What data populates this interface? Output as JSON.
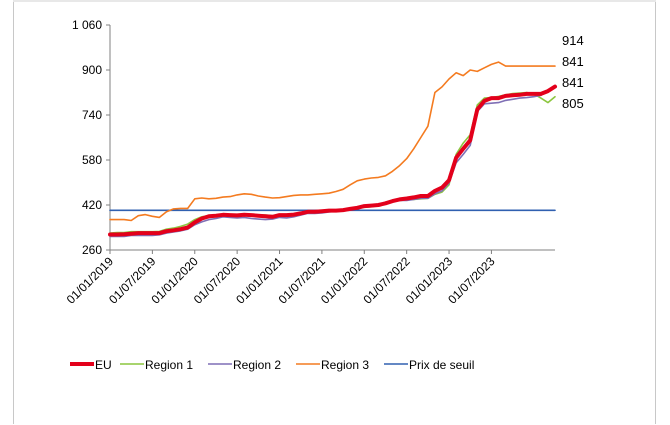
{
  "chart_data": {
    "type": "line",
    "title": "",
    "xlabel": "",
    "ylabel": "",
    "ylim": [
      260,
      1060
    ],
    "y_ticks": [
      {
        "value": 260,
        "label": "260"
      },
      {
        "value": 420,
        "label": "420"
      },
      {
        "value": 580,
        "label": "580"
      },
      {
        "value": 740,
        "label": "740"
      },
      {
        "value": 900,
        "label": "900"
      },
      {
        "value": 1060,
        "label": "1 060"
      }
    ],
    "x_ticks": [
      "01/01/2019",
      "01/07/2019",
      "01/01/2020",
      "01/07/2020",
      "01/01/2021",
      "01/07/2021",
      "01/01/2022",
      "01/07/2022",
      "01/01/2023",
      "01/07/2023"
    ],
    "x_start": "01/01/2019",
    "x_step": "monthly",
    "grid": false,
    "legend_position": "bottom",
    "series": [
      {
        "name": "EU",
        "color": "#e3001b",
        "values": [
          315,
          315,
          316,
          318,
          320,
          320,
          320,
          320,
          327,
          330,
          334,
          340,
          358,
          372,
          380,
          382,
          385,
          384,
          383,
          385,
          384,
          382,
          380,
          378,
          384,
          384,
          386,
          390,
          396,
          396,
          398,
          400,
          400,
          402,
          406,
          410,
          416,
          418,
          420,
          426,
          434,
          440,
          443,
          447,
          452,
          452,
          470,
          482,
          508,
          588,
          620,
          650,
          760,
          790,
          800,
          800,
          808,
          810,
          812,
          815,
          815,
          815,
          825,
          841
        ]
      },
      {
        "name": "Region 1",
        "color": "#8cc63f",
        "values": [
          320,
          322,
          322,
          325,
          325,
          325,
          325,
          326,
          334,
          338,
          344,
          352,
          368,
          378,
          382,
          384,
          386,
          384,
          384,
          386,
          385,
          384,
          384,
          382,
          386,
          386,
          388,
          392,
          396,
          396,
          397,
          398,
          400,
          402,
          406,
          410,
          412,
          414,
          418,
          424,
          432,
          436,
          438,
          440,
          442,
          444,
          458,
          466,
          492,
          600,
          640,
          670,
          776,
          800,
          802,
          806,
          812,
          816,
          818,
          820,
          815,
          800,
          784,
          805
        ]
      },
      {
        "name": "Region 2",
        "color": "#7f6fb5",
        "values": [
          308,
          308,
          308,
          312,
          312,
          312,
          312,
          314,
          320,
          324,
          328,
          334,
          350,
          360,
          368,
          372,
          378,
          376,
          374,
          376,
          372,
          370,
          368,
          370,
          376,
          374,
          378,
          384,
          390,
          390,
          392,
          395,
          398,
          400,
          404,
          410,
          416,
          418,
          422,
          428,
          432,
          436,
          436,
          440,
          444,
          444,
          460,
          470,
          498,
          570,
          600,
          632,
          752,
          780,
          782,
          784,
          792,
          796,
          800,
          802,
          805,
          810,
          828,
          841
        ]
      },
      {
        "name": "Region 3",
        "color": "#f47b20",
        "values": [
          368,
          368,
          368,
          365,
          382,
          386,
          380,
          376,
          396,
          406,
          408,
          408,
          442,
          445,
          442,
          444,
          448,
          450,
          456,
          460,
          458,
          452,
          448,
          445,
          446,
          450,
          454,
          456,
          456,
          458,
          460,
          462,
          468,
          476,
          492,
          506,
          512,
          516,
          518,
          524,
          540,
          560,
          585,
          620,
          660,
          700,
          820,
          840,
          868,
          890,
          880,
          900,
          895,
          908,
          920,
          928,
          914,
          914,
          914,
          914,
          914,
          914,
          914,
          914
        ]
      },
      {
        "name": "Prix de seuil",
        "color": "#3060b0",
        "values": [
          401,
          401,
          401,
          401,
          401,
          401,
          401,
          401,
          401,
          401,
          401,
          401,
          401,
          401,
          401,
          401,
          401,
          401,
          401,
          401,
          401,
          401,
          401,
          401,
          401,
          401,
          401,
          401,
          401,
          401,
          401,
          401,
          401,
          401,
          401,
          401,
          401,
          401,
          401,
          401,
          401,
          401,
          401,
          401,
          401,
          401,
          401,
          401,
          401,
          401,
          401,
          401,
          401,
          401,
          401,
          401,
          401,
          401,
          401,
          401,
          401,
          401,
          401,
          401
        ]
      }
    ],
    "end_labels": [
      "914",
      "841",
      "841",
      "805"
    ]
  }
}
